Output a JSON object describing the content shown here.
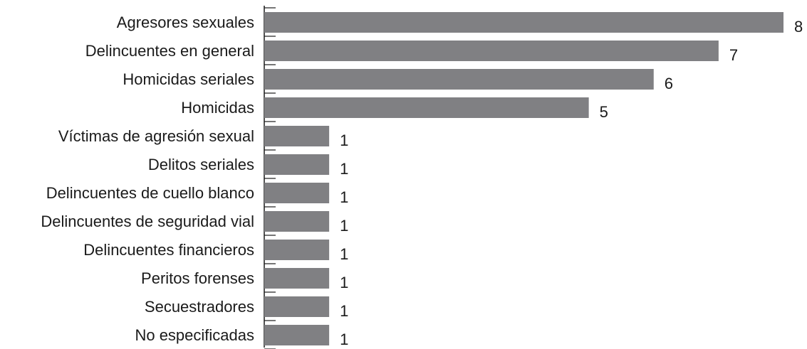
{
  "chart_data": {
    "type": "bar",
    "orientation": "horizontal",
    "categories": [
      "Agresores sexuales",
      "Delincuentes en general",
      "Homicidas seriales",
      "Homicidas",
      "Víctimas de agresión sexual",
      "Delitos seriales",
      "Delincuentes de cuello blanco",
      "Delincuentes de seguridad vial",
      "Delincuentes financieros",
      "Peritos forenses",
      "Secuestradores",
      "No especificadas"
    ],
    "values": [
      8,
      7,
      6,
      5,
      1,
      1,
      1,
      1,
      1,
      1,
      1,
      1
    ],
    "data_labels": [
      "8",
      "7",
      "6",
      "5",
      "1",
      "1",
      "1",
      "1",
      "1",
      "1",
      "1",
      "1"
    ],
    "xlim": [
      0,
      8
    ],
    "grid": false,
    "legend": "none",
    "bar_color": "#808083",
    "axis_color": "#1a1a1a",
    "text_color": "#1a1a1a"
  }
}
